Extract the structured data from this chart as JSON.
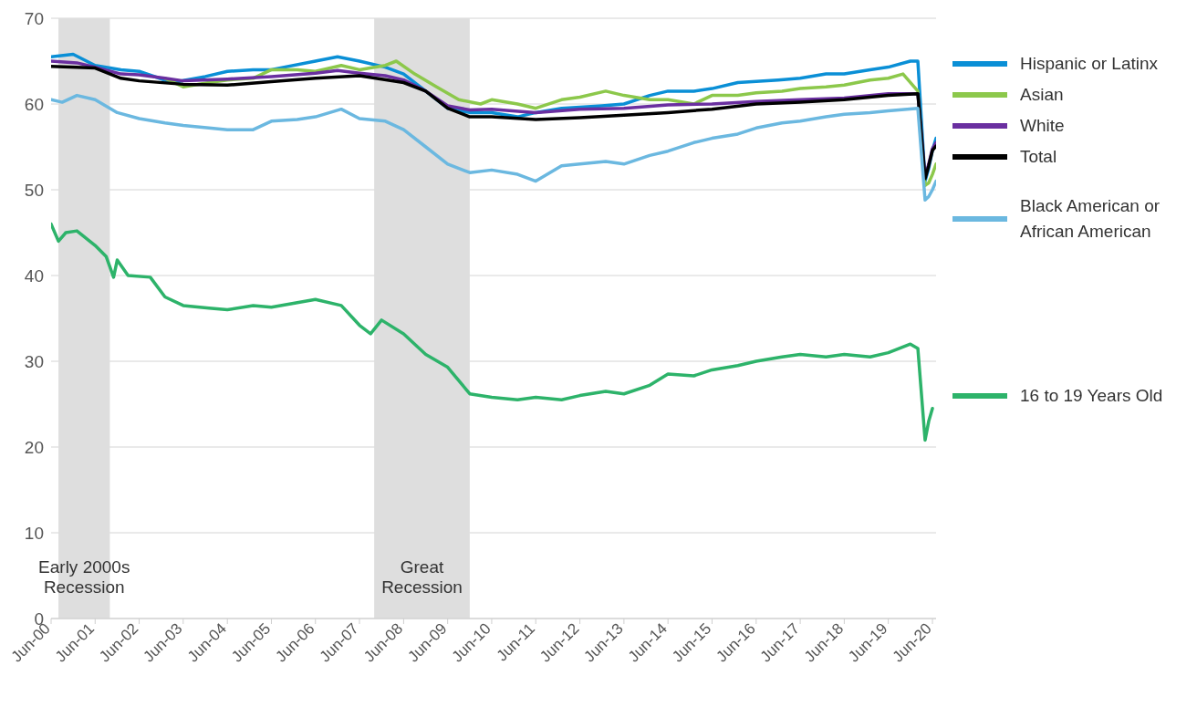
{
  "chart_data": {
    "type": "line",
    "legend": "right",
    "grid": "y",
    "marker": "none",
    "line_style": "solid",
    "xlim": [
      "2000-06",
      "2020-07"
    ],
    "ylim": [
      0,
      70
    ],
    "yticks": [
      0,
      10,
      20,
      30,
      40,
      50,
      60,
      70
    ],
    "xticks": [
      {
        "value": "2000-06",
        "label": "Jun-00"
      },
      {
        "value": "2001-06",
        "label": "Jun-01"
      },
      {
        "value": "2002-06",
        "label": "Jun-02"
      },
      {
        "value": "2003-06",
        "label": "Jun-03"
      },
      {
        "value": "2004-06",
        "label": "Jun-04"
      },
      {
        "value": "2005-06",
        "label": "Jun-05"
      },
      {
        "value": "2006-06",
        "label": "Jun-06"
      },
      {
        "value": "2007-06",
        "label": "Jun-07"
      },
      {
        "value": "2008-06",
        "label": "Jun-08"
      },
      {
        "value": "2009-06",
        "label": "Jun-09"
      },
      {
        "value": "2010-06",
        "label": "Jun-10"
      },
      {
        "value": "2011-06",
        "label": "Jun-11"
      },
      {
        "value": "2012-06",
        "label": "Jun-12"
      },
      {
        "value": "2013-06",
        "label": "Jun-13"
      },
      {
        "value": "2014-06",
        "label": "Jun-14"
      },
      {
        "value": "2015-06",
        "label": "Jun-15"
      },
      {
        "value": "2016-06",
        "label": "Jun-16"
      },
      {
        "value": "2017-06",
        "label": "Jun-17"
      },
      {
        "value": "2018-06",
        "label": "Jun-18"
      },
      {
        "value": "2019-06",
        "label": "Jun-19"
      },
      {
        "value": "2020-06",
        "label": "Jun-20"
      }
    ],
    "bands": [
      {
        "axis": "x",
        "from": "2000-08",
        "to": "2001-10",
        "label": "Early 2000s Recession",
        "color": "#dedede"
      },
      {
        "axis": "x",
        "from": "2007-10",
        "to": "2009-12",
        "label": "Great Recession",
        "color": "#dedede"
      }
    ],
    "series": [
      {
        "name": "Hispanic or Latinx",
        "color": "#0a8fd6",
        "x": [
          "2000-06",
          "2000-12",
          "2001-06",
          "2002-01",
          "2002-06",
          "2003-03",
          "2003-12",
          "2004-06",
          "2005-01",
          "2005-06",
          "2006-06",
          "2006-12",
          "2007-06",
          "2008-01",
          "2008-06",
          "2008-12",
          "2009-06",
          "2009-12",
          "2010-06",
          "2011-01",
          "2011-06",
          "2012-01",
          "2012-12",
          "2013-06",
          "2014-01",
          "2014-06",
          "2015-01",
          "2015-06",
          "2016-01",
          "2016-12",
          "2017-06",
          "2018-01",
          "2018-06",
          "2019-01",
          "2019-06",
          "2019-12",
          "2020-02",
          "2020-04",
          "2020-05",
          "2020-06",
          "2020-07"
        ],
        "values": [
          65.5,
          65.8,
          64.5,
          64.0,
          63.8,
          62.5,
          63.2,
          63.8,
          64.0,
          64.0,
          65.0,
          65.5,
          65.0,
          64.3,
          63.5,
          61.5,
          59.5,
          59.0,
          59.0,
          58.5,
          59.0,
          59.5,
          59.8,
          60.0,
          61.0,
          61.5,
          61.5,
          61.8,
          62.5,
          62.8,
          63.0,
          63.5,
          63.5,
          64.0,
          64.3,
          65.0,
          65.0,
          51.0,
          52.5,
          54.6,
          56.0
        ]
      },
      {
        "name": "Asian",
        "color": "#8cc84b",
        "x": [
          "2003-01",
          "2003-06",
          "2004-01",
          "2004-06",
          "2005-01",
          "2005-06",
          "2006-01",
          "2006-06",
          "2007-01",
          "2007-06",
          "2008-01",
          "2008-04",
          "2008-09",
          "2009-03",
          "2009-09",
          "2010-03",
          "2010-06",
          "2011-01",
          "2011-06",
          "2012-01",
          "2012-06",
          "2013-01",
          "2013-06",
          "2014-01",
          "2014-06",
          "2015-01",
          "2015-06",
          "2016-01",
          "2016-06",
          "2017-01",
          "2017-06",
          "2018-01",
          "2018-06",
          "2019-01",
          "2019-06",
          "2019-10",
          "2020-02",
          "2020-04",
          "2020-05",
          "2020-06",
          "2020-07"
        ],
        "values": [
          63.0,
          62.0,
          62.5,
          62.8,
          63.0,
          64.0,
          64.0,
          63.8,
          64.5,
          64.0,
          64.5,
          65.0,
          63.5,
          62.0,
          60.5,
          60.0,
          60.5,
          60.0,
          59.5,
          60.5,
          60.8,
          61.5,
          61.0,
          60.5,
          60.5,
          60.0,
          61.0,
          61.0,
          61.3,
          61.5,
          61.8,
          62.0,
          62.2,
          62.8,
          63.0,
          63.5,
          61.5,
          50.5,
          50.8,
          51.8,
          53.0
        ]
      },
      {
        "name": "White",
        "color": "#6a2fa0",
        "x": [
          "2000-06",
          "2001-01",
          "2001-06",
          "2002-01",
          "2002-06",
          "2003-01",
          "2003-06",
          "2004-06",
          "2005-06",
          "2006-06",
          "2006-12",
          "2007-06",
          "2008-01",
          "2008-06",
          "2008-12",
          "2009-06",
          "2009-12",
          "2010-06",
          "2011-06",
          "2012-06",
          "2013-06",
          "2014-06",
          "2015-06",
          "2016-06",
          "2017-06",
          "2018-06",
          "2019-06",
          "2020-02",
          "2020-04",
          "2020-05",
          "2020-06",
          "2020-07"
        ],
        "values": [
          65.0,
          64.8,
          64.3,
          63.5,
          63.4,
          63.0,
          62.7,
          62.9,
          63.2,
          63.6,
          63.9,
          63.6,
          63.3,
          62.8,
          61.5,
          59.8,
          59.3,
          59.4,
          59.0,
          59.4,
          59.5,
          59.9,
          60.0,
          60.3,
          60.5,
          60.7,
          61.2,
          61.2,
          51.5,
          53.0,
          54.8,
          55.5
        ]
      },
      {
        "name": "Total",
        "color": "#000000",
        "x": [
          "2000-06",
          "2001-06",
          "2002-01",
          "2002-06",
          "2003-06",
          "2004-06",
          "2005-06",
          "2006-06",
          "2007-06",
          "2007-12",
          "2008-06",
          "2008-12",
          "2009-06",
          "2009-12",
          "2010-06",
          "2011-06",
          "2012-06",
          "2013-06",
          "2014-06",
          "2015-06",
          "2016-06",
          "2017-06",
          "2018-06",
          "2019-06",
          "2020-02",
          "2020-04",
          "2020-05",
          "2020-06",
          "2020-07"
        ],
        "values": [
          64.4,
          64.2,
          63.0,
          62.7,
          62.3,
          62.2,
          62.6,
          63.0,
          63.3,
          62.9,
          62.5,
          61.5,
          59.5,
          58.5,
          58.5,
          58.2,
          58.4,
          58.7,
          59.0,
          59.4,
          60.0,
          60.2,
          60.5,
          61.0,
          61.2,
          51.3,
          52.8,
          54.6,
          55.1
        ]
      },
      {
        "name": "Black American or African American",
        "color": "#6bb8e0",
        "x": [
          "2000-06",
          "2000-09",
          "2001-01",
          "2001-06",
          "2001-12",
          "2002-06",
          "2003-01",
          "2003-06",
          "2004-01",
          "2004-06",
          "2005-01",
          "2005-06",
          "2006-01",
          "2006-06",
          "2007-01",
          "2007-06",
          "2008-01",
          "2008-06",
          "2008-12",
          "2009-06",
          "2009-12",
          "2010-06",
          "2011-01",
          "2011-06",
          "2012-01",
          "2012-06",
          "2013-01",
          "2013-06",
          "2014-01",
          "2014-06",
          "2015-01",
          "2015-06",
          "2016-01",
          "2016-06",
          "2017-01",
          "2017-06",
          "2018-01",
          "2018-06",
          "2019-01",
          "2019-06",
          "2020-02",
          "2020-04",
          "2020-05",
          "2020-06",
          "2020-07"
        ],
        "values": [
          60.5,
          60.2,
          61.0,
          60.5,
          59.0,
          58.3,
          57.8,
          57.5,
          57.2,
          57.0,
          57.0,
          58.0,
          58.2,
          58.5,
          59.4,
          58.3,
          58.0,
          57.0,
          55.0,
          53.0,
          52.0,
          52.3,
          51.8,
          51.0,
          52.8,
          53.0,
          53.3,
          53.0,
          54.0,
          54.5,
          55.5,
          56.0,
          56.5,
          57.2,
          57.8,
          58.0,
          58.5,
          58.8,
          59.0,
          59.2,
          59.5,
          48.8,
          49.2,
          50.0,
          51.0
        ]
      },
      {
        "name": "16 to 19 Years Old",
        "color": "#2db36a",
        "x": [
          "2000-06",
          "2000-08",
          "2000-10",
          "2001-01",
          "2001-06",
          "2001-09",
          "2001-11",
          "2001-12",
          "2002-03",
          "2002-09",
          "2003-01",
          "2003-06",
          "2004-01",
          "2004-06",
          "2005-01",
          "2005-06",
          "2006-06",
          "2007-01",
          "2007-06",
          "2007-09",
          "2007-12",
          "2008-06",
          "2008-12",
          "2009-06",
          "2009-12",
          "2010-06",
          "2011-01",
          "2011-06",
          "2012-01",
          "2012-06",
          "2013-01",
          "2013-06",
          "2014-01",
          "2014-06",
          "2015-01",
          "2015-06",
          "2016-01",
          "2016-06",
          "2017-01",
          "2017-06",
          "2018-01",
          "2018-06",
          "2019-01",
          "2019-06",
          "2019-12",
          "2020-02",
          "2020-04",
          "2020-05",
          "2020-06"
        ],
        "values": [
          46.0,
          44.0,
          45.0,
          45.2,
          43.5,
          42.2,
          39.8,
          41.8,
          40.0,
          39.8,
          37.5,
          36.5,
          36.2,
          36.0,
          36.5,
          36.3,
          37.2,
          36.5,
          34.2,
          33.2,
          34.8,
          33.2,
          30.8,
          29.3,
          26.2,
          25.8,
          25.5,
          25.8,
          25.5,
          26.0,
          26.5,
          26.2,
          27.2,
          28.5,
          28.3,
          29.0,
          29.5,
          30.0,
          30.5,
          30.8,
          30.5,
          30.8,
          30.5,
          31.0,
          32.0,
          31.5,
          20.8,
          23.0,
          24.5
        ]
      }
    ]
  }
}
